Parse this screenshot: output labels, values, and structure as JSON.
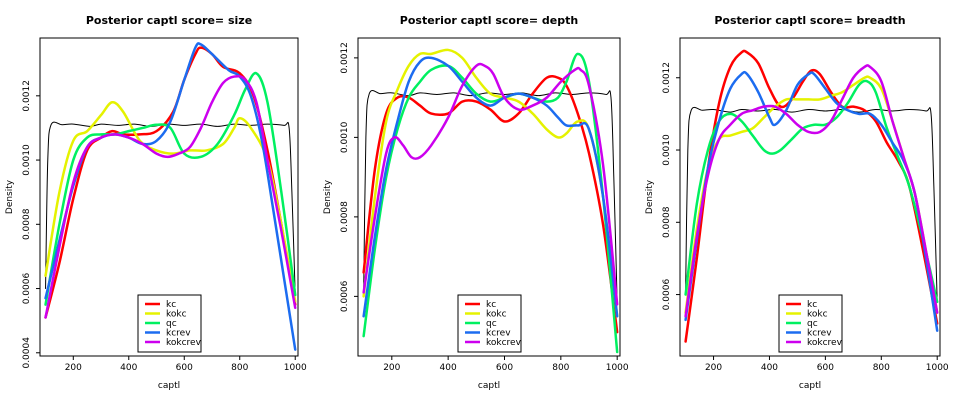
{
  "chart_data": [
    {
      "type": "line",
      "title": "Posterior captl  score= size",
      "xlabel": "captl",
      "ylabel": "Density",
      "xlim": [
        80,
        1010
      ],
      "ylim": [
        0.00039,
        0.00138
      ],
      "xticks": [
        200,
        400,
        600,
        800,
        1000
      ],
      "yticks": [
        0.0004,
        0.0006,
        0.0008,
        0.001,
        0.0012
      ],
      "ytick_labels": [
        "0.0004",
        "0.0006",
        "0.0008",
        "0.0010",
        "0.0012"
      ],
      "legend_position": "bottom-center",
      "series": [
        {
          "name": "",
          "color": "#000000",
          "width": 1,
          "legend": false,
          "x": [
            100,
            108,
            120,
            160,
            200,
            260,
            300,
            360,
            420,
            480,
            540,
            600,
            660,
            720,
            780,
            840,
            900,
            960,
            978,
            988,
            1000
          ],
          "y": [
            0.0006,
            0.001,
            0.00111,
            0.00111,
            0.001112,
            0.001105,
            0.001112,
            0.001108,
            0.001112,
            0.001105,
            0.001112,
            0.001108,
            0.001112,
            0.001105,
            0.001112,
            0.001108,
            0.001112,
            0.001108,
            0.0011,
            0.0009,
            0.00058
          ]
        },
        {
          "name": "kc",
          "color": "#ff0000",
          "width": 2.5,
          "legend": true,
          "x": [
            100,
            150,
            200,
            250,
            300,
            340,
            380,
            440,
            500,
            560,
            600,
            640,
            660,
            700,
            740,
            800,
            850,
            900,
            950,
            1000
          ],
          "y": [
            0.00051,
            0.00068,
            0.00088,
            0.00103,
            0.00107,
            0.00109,
            0.00108,
            0.00108,
            0.00109,
            0.00115,
            0.00125,
            0.00133,
            0.00135,
            0.00133,
            0.00129,
            0.00127,
            0.0012,
            0.00103,
            0.0008,
            0.00055
          ]
        },
        {
          "name": "kokc",
          "color": "#e5f200",
          "width": 2.5,
          "legend": true,
          "x": [
            100,
            150,
            200,
            250,
            300,
            340,
            380,
            440,
            500,
            560,
            620,
            680,
            740,
            780,
            800,
            840,
            900,
            950,
            1000
          ],
          "y": [
            0.00064,
            0.0009,
            0.00106,
            0.00109,
            0.00114,
            0.00118,
            0.00115,
            0.00106,
            0.00103,
            0.00102,
            0.00103,
            0.00103,
            0.00105,
            0.0011,
            0.00113,
            0.0011,
            0.001,
            0.0008,
            0.00056
          ]
        },
        {
          "name": "qc",
          "color": "#00f060",
          "width": 2.5,
          "legend": true,
          "x": [
            100,
            150,
            200,
            250,
            300,
            350,
            400,
            450,
            500,
            550,
            600,
            660,
            720,
            780,
            820,
            860,
            900,
            950,
            1000
          ],
          "y": [
            0.00055,
            0.0008,
            0.001,
            0.00107,
            0.00108,
            0.00108,
            0.00109,
            0.0011,
            0.00111,
            0.0011,
            0.00102,
            0.00101,
            0.00105,
            0.00114,
            0.00122,
            0.00127,
            0.00118,
            0.0009,
            0.00058
          ]
        },
        {
          "name": "kcrev",
          "color": "#1c6cf0",
          "width": 2.5,
          "legend": true,
          "x": [
            100,
            150,
            200,
            250,
            300,
            350,
            400,
            450,
            500,
            550,
            600,
            640,
            660,
            700,
            760,
            800,
            840,
            880,
            920,
            960,
            1000
          ],
          "y": [
            0.00057,
            0.00075,
            0.00092,
            0.00104,
            0.00107,
            0.00108,
            0.00107,
            0.00105,
            0.00106,
            0.00112,
            0.00125,
            0.00135,
            0.00136,
            0.00133,
            0.00128,
            0.00126,
            0.0012,
            0.00106,
            0.00085,
            0.00063,
            0.00041
          ]
        },
        {
          "name": "kokcrev",
          "color": "#cc00ee",
          "width": 2.5,
          "legend": true,
          "x": [
            100,
            150,
            200,
            250,
            300,
            350,
            400,
            450,
            500,
            540,
            580,
            620,
            660,
            700,
            740,
            780,
            820,
            860,
            900,
            950,
            1000
          ],
          "y": [
            0.00051,
            0.00073,
            0.00093,
            0.00104,
            0.00107,
            0.00108,
            0.00107,
            0.00105,
            0.00102,
            0.00101,
            0.00102,
            0.00104,
            0.0011,
            0.00118,
            0.00124,
            0.00126,
            0.00125,
            0.00118,
            0.001,
            0.00078,
            0.00054
          ]
        }
      ]
    },
    {
      "type": "line",
      "title": "Posterior captl  score= depth",
      "xlabel": "captl",
      "ylabel": "Density",
      "xlim": [
        80,
        1010
      ],
      "ylim": [
        0.00045,
        0.00125
      ],
      "xticks": [
        200,
        400,
        600,
        800,
        1000
      ],
      "yticks": [
        0.0006,
        0.0008,
        0.001,
        0.0012
      ],
      "ytick_labels": [
        "0.0006",
        "0.0008",
        "0.0010",
        "0.0012"
      ],
      "legend_position": "bottom-center",
      "series": [
        {
          "name": "",
          "color": "#000000",
          "width": 1,
          "legend": false,
          "x": [
            100,
            108,
            120,
            160,
            200,
            260,
            300,
            360,
            420,
            480,
            540,
            600,
            660,
            720,
            780,
            840,
            900,
            960,
            978,
            988,
            1000
          ],
          "y": [
            0.0006,
            0.001,
            0.00111,
            0.00111,
            0.001112,
            0.001105,
            0.001112,
            0.001108,
            0.001112,
            0.001105,
            0.001112,
            0.001108,
            0.001112,
            0.001105,
            0.001112,
            0.001108,
            0.001112,
            0.001108,
            0.0011,
            0.0009,
            0.00058
          ]
        },
        {
          "name": "kc",
          "color": "#ff0000",
          "width": 2.5,
          "legend": true,
          "x": [
            100,
            140,
            180,
            220,
            260,
            300,
            340,
            400,
            450,
            500,
            550,
            600,
            650,
            700,
            750,
            790,
            820,
            860,
            900,
            950,
            1000
          ],
          "y": [
            0.00066,
            0.00092,
            0.00106,
            0.0011,
            0.0011,
            0.00108,
            0.00106,
            0.00106,
            0.00109,
            0.00109,
            0.00107,
            0.00104,
            0.00106,
            0.00111,
            0.00115,
            0.00115,
            0.00113,
            0.00106,
            0.00096,
            0.00078,
            0.00051
          ]
        },
        {
          "name": "kokc",
          "color": "#e5f200",
          "width": 2.5,
          "legend": true,
          "x": [
            100,
            140,
            180,
            220,
            260,
            300,
            340,
            400,
            450,
            500,
            550,
            600,
            650,
            700,
            750,
            790,
            820,
            860,
            900,
            950,
            1000
          ],
          "y": [
            0.0006,
            0.00085,
            0.00104,
            0.00112,
            0.00118,
            0.00121,
            0.00121,
            0.00122,
            0.0012,
            0.00115,
            0.00111,
            0.0011,
            0.00109,
            0.00106,
            0.00102,
            0.001,
            0.00101,
            0.00104,
            0.00102,
            0.00085,
            0.00055
          ]
        },
        {
          "name": "qc",
          "color": "#00f060",
          "width": 2.5,
          "legend": true,
          "x": [
            100,
            140,
            180,
            220,
            260,
            300,
            340,
            400,
            450,
            500,
            550,
            600,
            650,
            700,
            750,
            790,
            820,
            860,
            900,
            950,
            1000
          ],
          "y": [
            0.0005,
            0.00072,
            0.0009,
            0.00102,
            0.0011,
            0.00114,
            0.00117,
            0.00118,
            0.00115,
            0.00111,
            0.00109,
            0.0011,
            0.00111,
            0.0011,
            0.00109,
            0.0011,
            0.00114,
            0.00121,
            0.00114,
            0.00085,
            0.00046
          ]
        },
        {
          "name": "kcrev",
          "color": "#1c6cf0",
          "width": 2.5,
          "legend": true,
          "x": [
            100,
            140,
            180,
            220,
            260,
            300,
            340,
            400,
            450,
            500,
            550,
            600,
            650,
            700,
            750,
            790,
            820,
            860,
            900,
            950,
            1000
          ],
          "y": [
            0.00055,
            0.00075,
            0.00092,
            0.00104,
            0.00114,
            0.00119,
            0.0012,
            0.00118,
            0.00114,
            0.0011,
            0.00108,
            0.0011,
            0.00111,
            0.0011,
            0.00108,
            0.00105,
            0.00103,
            0.00103,
            0.00102,
            0.00085,
            0.00055
          ]
        },
        {
          "name": "kokcrev",
          "color": "#cc00ee",
          "width": 2.5,
          "legend": true,
          "x": [
            100,
            140,
            180,
            210,
            240,
            270,
            300,
            340,
            400,
            450,
            500,
            530,
            560,
            600,
            650,
            700,
            750,
            800,
            850,
            870,
            900,
            950,
            1000
          ],
          "y": [
            0.00061,
            0.0008,
            0.00096,
            0.001,
            0.00098,
            0.00095,
            0.00095,
            0.00098,
            0.00105,
            0.00113,
            0.00118,
            0.00118,
            0.00116,
            0.0011,
            0.00107,
            0.00108,
            0.0011,
            0.00114,
            0.00117,
            0.00117,
            0.00113,
            0.00093,
            0.00058
          ]
        }
      ]
    },
    {
      "type": "line",
      "title": "Posterior captl  score= breadth",
      "xlabel": "captl",
      "ylabel": "Density",
      "xlim": [
        80,
        1010
      ],
      "ylim": [
        0.00043,
        0.00131
      ],
      "xticks": [
        200,
        400,
        600,
        800,
        1000
      ],
      "yticks": [
        0.0006,
        0.0008,
        0.001,
        0.0012
      ],
      "ytick_labels": [
        "0.0006",
        "0.0008",
        "0.0010",
        "0.0012"
      ],
      "legend_position": "bottom-center",
      "series": [
        {
          "name": "",
          "color": "#000000",
          "width": 1,
          "legend": false,
          "x": [
            100,
            108,
            120,
            160,
            200,
            260,
            300,
            360,
            420,
            480,
            540,
            600,
            660,
            720,
            780,
            840,
            900,
            960,
            978,
            988,
            1000
          ],
          "y": [
            0.0006,
            0.001,
            0.00111,
            0.00111,
            0.001112,
            0.001105,
            0.001112,
            0.001108,
            0.001112,
            0.001105,
            0.001112,
            0.001108,
            0.001112,
            0.001105,
            0.001112,
            0.001108,
            0.001112,
            0.001108,
            0.0011,
            0.0009,
            0.00058
          ]
        },
        {
          "name": "kc",
          "color": "#ff0000",
          "width": 2.5,
          "legend": true,
          "x": [
            100,
            140,
            180,
            220,
            260,
            300,
            320,
            360,
            400,
            440,
            480,
            520,
            550,
            580,
            620,
            660,
            700,
            740,
            780,
            820,
            860,
            900,
            950,
            1000
          ],
          "y": [
            0.00047,
            0.0007,
            0.00095,
            0.00113,
            0.00123,
            0.00127,
            0.00127,
            0.00124,
            0.00117,
            0.00112,
            0.00114,
            0.00119,
            0.00122,
            0.00121,
            0.00116,
            0.00112,
            0.00112,
            0.00111,
            0.00108,
            0.00102,
            0.00097,
            0.0009,
            0.00072,
            0.00052
          ]
        },
        {
          "name": "kokc",
          "color": "#e5f200",
          "width": 2.5,
          "legend": true,
          "x": [
            100,
            140,
            180,
            220,
            260,
            300,
            340,
            380,
            420,
            460,
            500,
            540,
            580,
            620,
            660,
            700,
            740,
            760,
            800,
            840,
            880,
            920,
            960,
            1000
          ],
          "y": [
            0.00055,
            0.00078,
            0.00095,
            0.00103,
            0.00104,
            0.00105,
            0.00106,
            0.00109,
            0.00112,
            0.00114,
            0.00114,
            0.00114,
            0.00114,
            0.00115,
            0.00116,
            0.00118,
            0.0012,
            0.0012,
            0.00117,
            0.00108,
            0.00098,
            0.00088,
            0.00072,
            0.00055
          ]
        },
        {
          "name": "qc",
          "color": "#00f060",
          "width": 2.5,
          "legend": true,
          "x": [
            100,
            140,
            180,
            220,
            260,
            300,
            340,
            380,
            410,
            440,
            480,
            520,
            560,
            600,
            640,
            680,
            720,
            750,
            780,
            820,
            860,
            900,
            950,
            1000
          ],
          "y": [
            0.0006,
            0.00085,
            0.001,
            0.00108,
            0.0011,
            0.00108,
            0.00104,
            0.001,
            0.00099,
            0.001,
            0.00103,
            0.00106,
            0.00107,
            0.00107,
            0.00109,
            0.00113,
            0.00118,
            0.00119,
            0.00116,
            0.00106,
            0.00098,
            0.0009,
            0.00075,
            0.00058
          ]
        },
        {
          "name": "kcrev",
          "color": "#1c6cf0",
          "width": 2.5,
          "legend": true,
          "x": [
            100,
            140,
            180,
            220,
            260,
            300,
            320,
            360,
            400,
            420,
            460,
            500,
            540,
            560,
            600,
            640,
            680,
            720,
            760,
            800,
            840,
            880,
            920,
            960,
            1000
          ],
          "y": [
            0.00053,
            0.00075,
            0.00095,
            0.00108,
            0.00117,
            0.00121,
            0.00121,
            0.00116,
            0.00109,
            0.00107,
            0.00111,
            0.00118,
            0.00121,
            0.00121,
            0.00117,
            0.00113,
            0.00111,
            0.0011,
            0.0011,
            0.00107,
            0.00102,
            0.00097,
            0.00088,
            0.0007,
            0.0005
          ]
        },
        {
          "name": "kokcrev",
          "color": "#cc00ee",
          "width": 2.5,
          "legend": true,
          "x": [
            100,
            140,
            180,
            220,
            260,
            300,
            340,
            380,
            420,
            460,
            500,
            540,
            580,
            620,
            660,
            700,
            740,
            760,
            800,
            840,
            880,
            920,
            960,
            1000
          ],
          "y": [
            0.00054,
            0.00076,
            0.00093,
            0.00103,
            0.00107,
            0.0011,
            0.00111,
            0.00112,
            0.00112,
            0.0011,
            0.00107,
            0.00105,
            0.00105,
            0.00108,
            0.00114,
            0.0012,
            0.00123,
            0.00123,
            0.00119,
            0.00108,
            0.00098,
            0.00088,
            0.00072,
            0.00055
          ]
        }
      ]
    }
  ]
}
